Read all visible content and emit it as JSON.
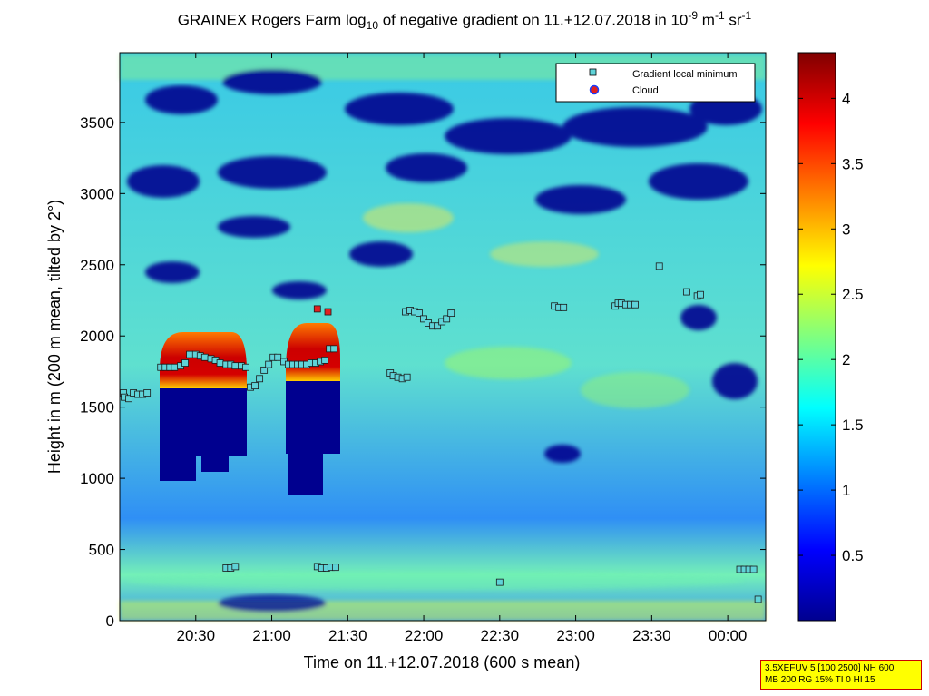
{
  "chart_data": {
    "type": "heatmap",
    "title": {
      "prefix": "GRAINEX Rogers Farm log",
      "sub": "10",
      "middle": " of negative gradient on 11.+12.07.2018 in 10",
      "exp1": "-9",
      "unit_mid": " m",
      "exp2": "-1",
      "unit_end": " sr",
      "exp3": "-1"
    },
    "xlabel": "Time on 11.+12.07.2018 (600 s mean)",
    "ylabel": "Height in m (200 m mean, tilted by 2°)",
    "x_range_hours": [
      20.0,
      24.25
    ],
    "x_ticks": [
      {
        "h": 20.5,
        "label": "20:30"
      },
      {
        "h": 21.0,
        "label": "21:00"
      },
      {
        "h": 21.5,
        "label": "21:30"
      },
      {
        "h": 22.0,
        "label": "22:00"
      },
      {
        "h": 22.5,
        "label": "22:30"
      },
      {
        "h": 23.0,
        "label": "23:00"
      },
      {
        "h": 23.5,
        "label": "23:30"
      },
      {
        "h": 24.0,
        "label": "00:00"
      }
    ],
    "ylim": [
      0,
      3990
    ],
    "y_ticks": [
      0,
      500,
      1000,
      1500,
      2000,
      2500,
      3000,
      3500
    ],
    "colorbar": {
      "range": [
        0,
        4.35
      ],
      "ticks": [
        0.5,
        1,
        1.5,
        2,
        2.5,
        3,
        3.5,
        4
      ],
      "colormap": "jet"
    },
    "legend": {
      "position": "top-right",
      "entries": [
        {
          "label": "Gradient local minimum",
          "color": "#5fd3d8",
          "marker": "square"
        },
        {
          "label": "Cloud",
          "color": "#e02020",
          "marker": "circle"
        }
      ]
    },
    "gradient_local_minimum": [
      [
        20.0,
        1600
      ],
      [
        20.03,
        1570
      ],
      [
        20.06,
        1560
      ],
      [
        20.09,
        1600
      ],
      [
        20.12,
        1590
      ],
      [
        20.15,
        1590
      ],
      [
        20.18,
        1600
      ],
      [
        20.27,
        1780
      ],
      [
        20.3,
        1780
      ],
      [
        20.33,
        1780
      ],
      [
        20.36,
        1780
      ],
      [
        20.4,
        1790
      ],
      [
        20.43,
        1810
      ],
      [
        20.46,
        1870
      ],
      [
        20.5,
        1870
      ],
      [
        20.53,
        1860
      ],
      [
        20.56,
        1850
      ],
      [
        20.6,
        1840
      ],
      [
        20.63,
        1830
      ],
      [
        20.66,
        1810
      ],
      [
        20.7,
        1800
      ],
      [
        20.73,
        1800
      ],
      [
        20.76,
        1790
      ],
      [
        20.8,
        1790
      ],
      [
        20.83,
        1780
      ],
      [
        20.7,
        370
      ],
      [
        20.73,
        370
      ],
      [
        20.76,
        380
      ],
      [
        20.86,
        1640
      ],
      [
        20.89,
        1650
      ],
      [
        20.92,
        1700
      ],
      [
        20.95,
        1760
      ],
      [
        20.98,
        1800
      ],
      [
        21.01,
        1850
      ],
      [
        21.04,
        1850
      ],
      [
        21.08,
        1820
      ],
      [
        21.11,
        1800
      ],
      [
        21.14,
        1800
      ],
      [
        21.17,
        1800
      ],
      [
        21.2,
        1800
      ],
      [
        21.23,
        1800
      ],
      [
        21.26,
        1810
      ],
      [
        21.29,
        1810
      ],
      [
        21.32,
        1820
      ],
      [
        21.35,
        1830
      ],
      [
        21.38,
        1910
      ],
      [
        21.41,
        1910
      ],
      [
        21.3,
        380
      ],
      [
        21.33,
        370
      ],
      [
        21.36,
        370
      ],
      [
        21.39,
        375
      ],
      [
        21.42,
        375
      ],
      [
        21.78,
        1740
      ],
      [
        21.8,
        1720
      ],
      [
        21.83,
        1710
      ],
      [
        21.86,
        1700
      ],
      [
        21.89,
        1710
      ],
      [
        21.88,
        2170
      ],
      [
        21.91,
        2180
      ],
      [
        21.94,
        2170
      ],
      [
        21.97,
        2160
      ],
      [
        22.0,
        2120
      ],
      [
        22.03,
        2090
      ],
      [
        22.06,
        2070
      ],
      [
        22.09,
        2070
      ],
      [
        22.12,
        2100
      ],
      [
        22.15,
        2120
      ],
      [
        22.18,
        2160
      ],
      [
        22.5,
        270
      ],
      [
        22.86,
        2210
      ],
      [
        22.89,
        2200
      ],
      [
        22.92,
        2200
      ],
      [
        23.26,
        2210
      ],
      [
        23.28,
        2230
      ],
      [
        23.3,
        2230
      ],
      [
        23.33,
        2220
      ],
      [
        23.36,
        2220
      ],
      [
        23.39,
        2220
      ],
      [
        23.55,
        2490
      ],
      [
        23.73,
        2310
      ],
      [
        23.8,
        2280
      ],
      [
        23.82,
        2290
      ],
      [
        24.08,
        360
      ],
      [
        24.11,
        360
      ],
      [
        24.14,
        360
      ],
      [
        24.17,
        360
      ],
      [
        24.2,
        150
      ]
    ],
    "cloud": [
      [
        21.3,
        2190
      ],
      [
        21.37,
        2170
      ]
    ],
    "settings_lines": [
      "3.5XEFUV 5 [100 2500] NH 600",
      "MB 200 RG 15% TI 0 HI 15"
    ]
  }
}
